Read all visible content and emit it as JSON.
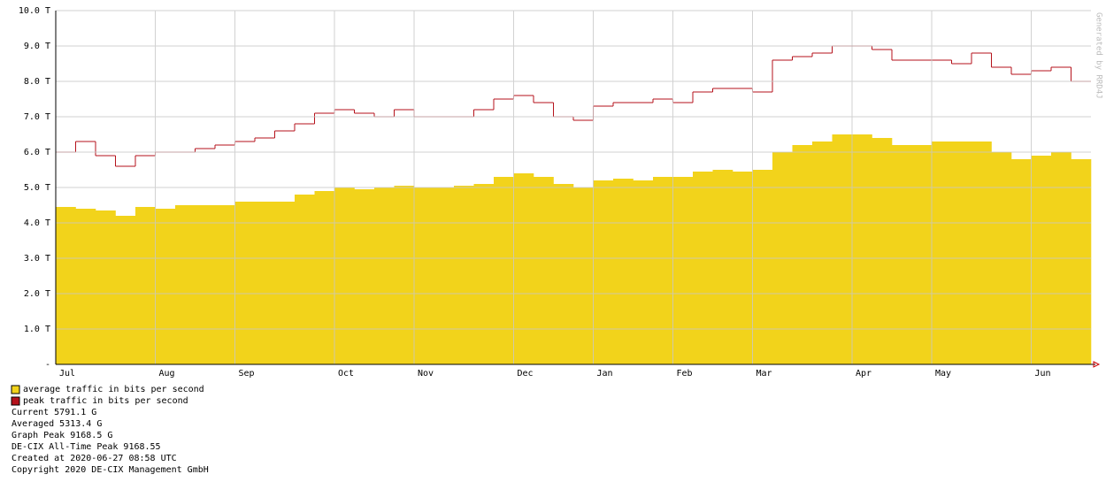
{
  "chart_data": {
    "type": "bar",
    "categories": [
      "Jul",
      null,
      null,
      null,
      null,
      "Aug",
      null,
      null,
      null,
      "Sep",
      null,
      null,
      null,
      null,
      "Oct",
      null,
      null,
      null,
      "Nov",
      null,
      null,
      null,
      null,
      "Dec",
      null,
      null,
      null,
      "Jan",
      null,
      null,
      null,
      "Feb",
      null,
      null,
      null,
      "Mar",
      null,
      null,
      null,
      null,
      "Apr",
      null,
      null,
      null,
      "May",
      null,
      null,
      null,
      null,
      "Jun",
      null,
      null
    ],
    "series": [
      {
        "name": "average traffic in bits per second",
        "color": "#f2d31b",
        "values": [
          4.45,
          4.4,
          4.35,
          4.2,
          4.45,
          4.4,
          4.5,
          4.5,
          4.5,
          4.6,
          4.6,
          4.6,
          4.8,
          4.9,
          5.0,
          4.95,
          5.0,
          5.05,
          5.0,
          5.0,
          5.05,
          5.1,
          5.3,
          5.4,
          5.3,
          5.1,
          5.0,
          5.2,
          5.25,
          5.2,
          5.3,
          5.3,
          5.45,
          5.5,
          5.45,
          5.5,
          6.0,
          6.2,
          6.3,
          6.5,
          6.5,
          6.4,
          6.2,
          6.2,
          6.3,
          6.3,
          6.3,
          6.0,
          5.8,
          5.9,
          6.0,
          5.8
        ]
      },
      {
        "name": "peak traffic in bits per second",
        "color": "#b5121b",
        "values": [
          6.0,
          6.3,
          5.9,
          5.6,
          5.9,
          6.0,
          6.0,
          6.1,
          6.2,
          6.3,
          6.4,
          6.6,
          6.8,
          7.1,
          7.2,
          7.1,
          7.0,
          7.2,
          7.0,
          7.0,
          7.0,
          7.2,
          7.5,
          7.6,
          7.4,
          7.0,
          6.9,
          7.3,
          7.4,
          7.4,
          7.5,
          7.4,
          7.7,
          7.8,
          7.8,
          7.7,
          8.6,
          8.7,
          8.8,
          9.0,
          9.0,
          8.9,
          8.6,
          8.6,
          8.6,
          8.5,
          8.8,
          8.4,
          8.2,
          8.3,
          8.4,
          8.0
        ]
      }
    ],
    "ylim": [
      0,
      10
    ],
    "yticks": [
      {
        "value": 0,
        "label": "-"
      },
      {
        "value": 1,
        "label": "1.0 T"
      },
      {
        "value": 2,
        "label": "2.0 T"
      },
      {
        "value": 3,
        "label": "3.0 T"
      },
      {
        "value": 4,
        "label": "4.0 T"
      },
      {
        "value": 5,
        "label": "5.0 T"
      },
      {
        "value": 6,
        "label": "6.0 T"
      },
      {
        "value": 7,
        "label": "7.0 T"
      },
      {
        "value": 8,
        "label": "8.0 T"
      },
      {
        "value": 9,
        "label": "9.0 T"
      },
      {
        "value": 10,
        "label": "10.0 T"
      }
    ],
    "grid": true,
    "credit": "Generated by RRD4J",
    "stats": [
      "Current 5791.1 G",
      "Averaged 5313.4 G",
      "Graph Peak 9168.5 G",
      "DE-CIX All-Time Peak 9168.55",
      "Created at 2020-06-27 08:58 UTC",
      "Copyright 2020 DE-CIX Management GmbH"
    ]
  }
}
